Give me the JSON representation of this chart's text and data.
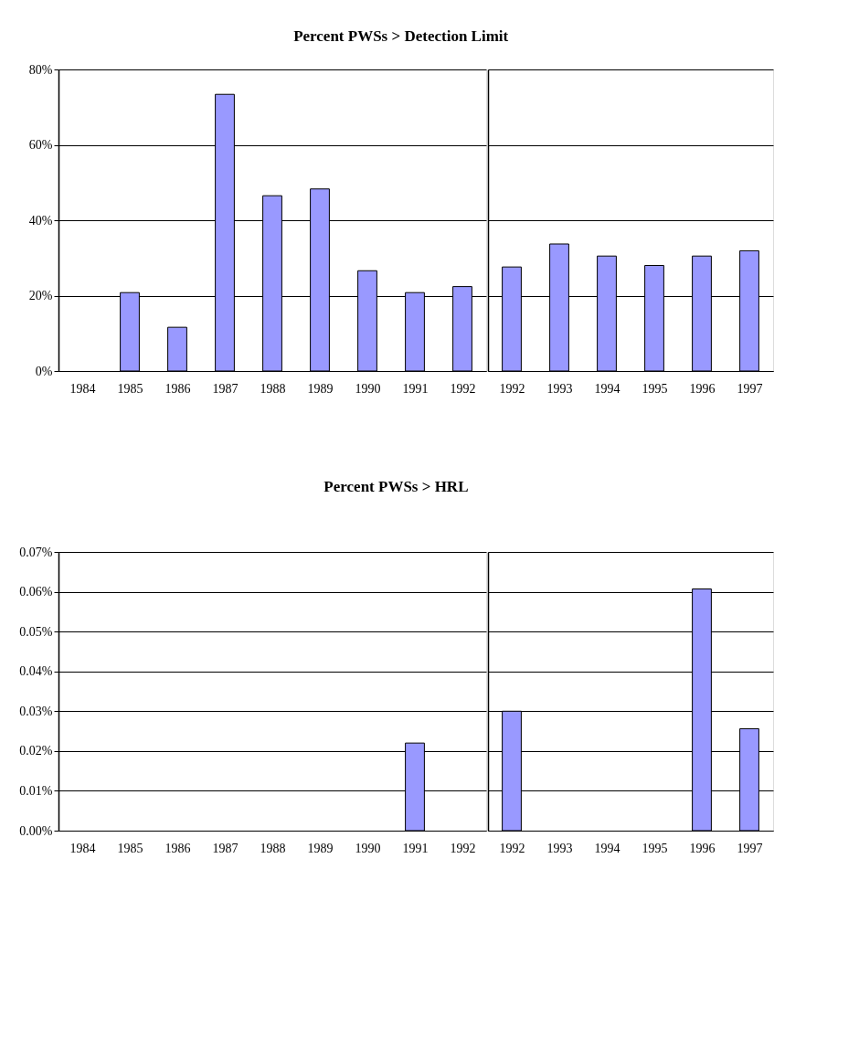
{
  "chart_data": [
    {
      "type": "bar",
      "title": "Percent PWSs > Detection Limit",
      "categories": [
        "1984",
        "1985",
        "1986",
        "1987",
        "1988",
        "1989",
        "1990",
        "1991",
        "1992"
      ],
      "values": [
        null,
        20.8,
        11.6,
        73.4,
        46.5,
        48.3,
        26.6,
        20.8,
        22.4
      ],
      "color": "#9999ff",
      "ylim": [
        0,
        80
      ],
      "yticks": [
        {
          "value": 0,
          "label": "0%"
        },
        {
          "value": 20,
          "label": "20%"
        },
        {
          "value": 40,
          "label": "40%"
        },
        {
          "value": 60,
          "label": "60%"
        },
        {
          "value": 80,
          "label": "80%"
        }
      ],
      "grid": "y"
    },
    {
      "type": "bar",
      "categories": [
        "1992",
        "1993",
        "1994",
        "1995",
        "1996",
        "1997"
      ],
      "values": [
        27.6,
        33.7,
        30.5,
        28.0,
        30.5,
        31.9
      ],
      "color": "#9999ff",
      "ylim": [
        0,
        80
      ],
      "yticks": [
        {
          "value": 0,
          "label": null
        },
        {
          "value": 20,
          "label": null
        },
        {
          "value": 40,
          "label": null
        },
        {
          "value": 60,
          "label": null
        },
        {
          "value": 80,
          "label": null
        }
      ],
      "grid": "y",
      "tick_labels": "x"
    },
    {
      "type": "bar",
      "title": "Percent PWSs > HRL",
      "categories": [
        "1984",
        "1985",
        "1986",
        "1987",
        "1988",
        "1989",
        "1990",
        "1991",
        "1992"
      ],
      "values": [
        null,
        null,
        null,
        null,
        null,
        null,
        null,
        0.022,
        null
      ],
      "color": "#9999ff",
      "ylim": [
        0,
        0.07
      ],
      "yticks": [
        {
          "value": 0,
          "label": "0.00%"
        },
        {
          "value": 0.01,
          "label": "0.01%"
        },
        {
          "value": 0.02,
          "label": "0.02%"
        },
        {
          "value": 0.03,
          "label": "0.03%"
        },
        {
          "value": 0.04,
          "label": "0.04%"
        },
        {
          "value": 0.05,
          "label": "0.05%"
        },
        {
          "value": 0.06,
          "label": "0.06%"
        },
        {
          "value": 0.07,
          "label": "0.07%"
        }
      ],
      "grid": "y"
    },
    {
      "type": "bar",
      "categories": [
        "1992",
        "1993",
        "1994",
        "1995",
        "1996",
        "1997"
      ],
      "values": [
        0.03,
        null,
        null,
        null,
        0.0607,
        0.0256
      ],
      "color": "#9999ff",
      "ylim": [
        0,
        0.07
      ],
      "yticks": [
        {
          "value": 0,
          "label": null
        },
        {
          "value": 0.01,
          "label": null
        },
        {
          "value": 0.02,
          "label": null
        },
        {
          "value": 0.03,
          "label": null
        },
        {
          "value": 0.04,
          "label": null
        },
        {
          "value": 0.05,
          "label": null
        },
        {
          "value": 0.06,
          "label": null
        },
        {
          "value": 0.07,
          "label": null
        }
      ],
      "grid": "y",
      "tick_labels": "x"
    }
  ]
}
